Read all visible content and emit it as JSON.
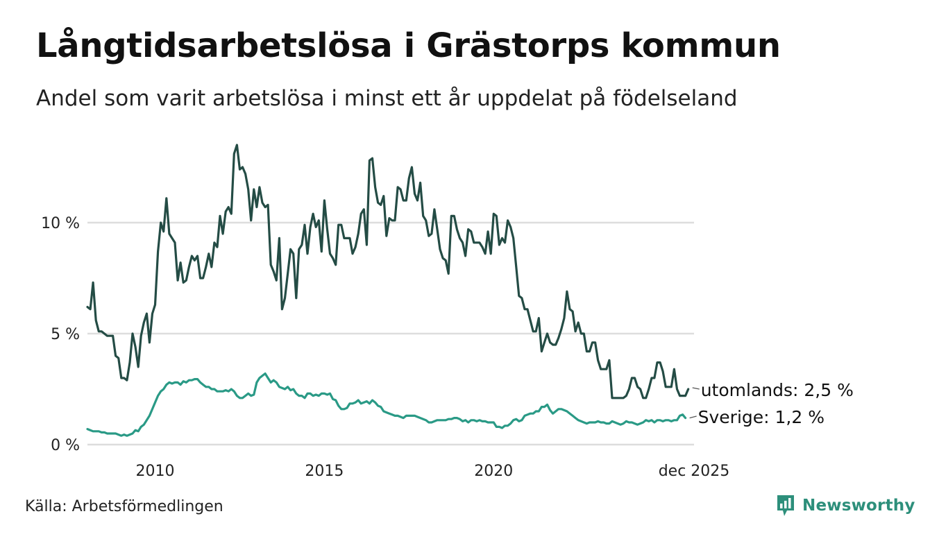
{
  "header": {
    "title": "Långtidsarbetslösa i Grästorps kommun",
    "subtitle": "Andel som varit arbetslösa i minst ett år uppdelat på födelseland"
  },
  "footer": {
    "source": "Källa: Arbetsförmedlingen",
    "brand": "Newsworthy"
  },
  "colors": {
    "utomlands": "#244c45",
    "sverige": "#2a9a86",
    "grid": "#dddddd",
    "brand": "#2d8f7b"
  },
  "chart_data": {
    "type": "line",
    "title": "Långtidsarbetslösa i Grästorps kommun",
    "subtitle": "Andel som varit arbetslösa i minst ett år uppdelat på födelseland",
    "xlabel": "",
    "ylabel": "",
    "x_start": "2008-01",
    "frequency": "monthly",
    "xlim": [
      2008.0,
      2025.92
    ],
    "ylim": [
      0,
      13.5
    ],
    "y_ticks": [
      0,
      5,
      10
    ],
    "y_tick_labels": [
      "0 %",
      "5 %",
      "10 %"
    ],
    "x_ticks": [
      2010,
      2015,
      2020,
      2025.92
    ],
    "x_tick_labels": [
      "2010",
      "2015",
      "2020",
      "dec 2025"
    ],
    "grid": true,
    "series": [
      {
        "name": "utomlands",
        "end_label": "utomlands: 2,5 %",
        "values": [
          6.2,
          6.1,
          7.3,
          5.6,
          5.1,
          5.1,
          5.0,
          4.9,
          4.9,
          4.9,
          4.0,
          3.9,
          3.0,
          3.0,
          2.9,
          3.7,
          5.0,
          4.4,
          3.5,
          4.9,
          5.5,
          5.9,
          4.6,
          5.9,
          6.3,
          8.7,
          10.0,
          9.6,
          11.1,
          9.5,
          9.3,
          9.1,
          7.4,
          8.2,
          7.3,
          7.4,
          8.0,
          8.5,
          8.3,
          8.5,
          7.5,
          7.5,
          8.0,
          8.6,
          8.0,
          9.1,
          8.9,
          10.3,
          9.5,
          10.5,
          10.7,
          10.4,
          13.1,
          13.5,
          12.4,
          12.5,
          12.2,
          11.5,
          10.1,
          11.5,
          10.7,
          11.6,
          10.9,
          10.7,
          10.8,
          8.1,
          7.8,
          7.4,
          9.3,
          6.1,
          6.6,
          7.7,
          8.8,
          8.6,
          6.6,
          8.8,
          9.0,
          9.9,
          8.6,
          9.8,
          10.4,
          9.8,
          10.1,
          8.7,
          11.0,
          9.7,
          8.6,
          8.4,
          8.1,
          9.9,
          9.9,
          9.3,
          9.3,
          9.3,
          8.6,
          8.9,
          9.5,
          10.4,
          10.6,
          9.0,
          12.8,
          12.9,
          11.6,
          10.9,
          10.8,
          11.2,
          9.4,
          10.2,
          10.1,
          10.1,
          11.6,
          11.5,
          11.0,
          11.0,
          12.0,
          12.5,
          11.3,
          11.0,
          11.8,
          10.3,
          10.1,
          9.4,
          9.5,
          10.6,
          9.7,
          8.8,
          8.4,
          8.3,
          7.7,
          10.3,
          10.3,
          9.7,
          9.3,
          9.1,
          8.5,
          9.7,
          9.6,
          9.1,
          9.1,
          9.1,
          8.9,
          8.6,
          9.6,
          8.6,
          10.4,
          10.3,
          9.0,
          9.3,
          9.1,
          10.1,
          9.8,
          9.3,
          8.0,
          6.7,
          6.6,
          6.1,
          6.1,
          5.6,
          5.1,
          5.1,
          5.7,
          4.2,
          4.6,
          5.0,
          4.6,
          4.5,
          4.5,
          4.8,
          5.2,
          5.7,
          6.9,
          6.1,
          6.0,
          5.1,
          5.5,
          5.0,
          5.0,
          4.2,
          4.2,
          4.6,
          4.6,
          3.8,
          3.4,
          3.4,
          3.4,
          3.8,
          2.1,
          2.1,
          2.1,
          2.1,
          2.1,
          2.2,
          2.5,
          3.0,
          3.0,
          2.6,
          2.5,
          2.1,
          2.1,
          2.5,
          3.0,
          3.0,
          3.7,
          3.7,
          3.3,
          2.6,
          2.6,
          2.6,
          3.4,
          2.5,
          2.2,
          2.2,
          2.2,
          2.5
        ]
      },
      {
        "name": "Sverige",
        "end_label": "Sverige: 1,2 %",
        "values": [
          0.7,
          0.65,
          0.6,
          0.6,
          0.6,
          0.55,
          0.55,
          0.5,
          0.5,
          0.5,
          0.5,
          0.45,
          0.4,
          0.45,
          0.4,
          0.45,
          0.5,
          0.65,
          0.6,
          0.8,
          0.9,
          1.1,
          1.3,
          1.6,
          1.9,
          2.2,
          2.4,
          2.5,
          2.7,
          2.8,
          2.75,
          2.8,
          2.8,
          2.7,
          2.85,
          2.8,
          2.9,
          2.9,
          2.95,
          2.95,
          2.8,
          2.7,
          2.6,
          2.6,
          2.5,
          2.5,
          2.4,
          2.4,
          2.4,
          2.45,
          2.4,
          2.5,
          2.4,
          2.2,
          2.1,
          2.1,
          2.2,
          2.3,
          2.2,
          2.25,
          2.8,
          3.0,
          3.1,
          3.2,
          3.0,
          2.8,
          2.9,
          2.8,
          2.6,
          2.55,
          2.5,
          2.6,
          2.45,
          2.5,
          2.3,
          2.2,
          2.2,
          2.1,
          2.3,
          2.3,
          2.2,
          2.25,
          2.2,
          2.3,
          2.3,
          2.25,
          2.3,
          2.05,
          2.0,
          1.75,
          1.6,
          1.6,
          1.65,
          1.85,
          1.85,
          1.9,
          2.0,
          1.85,
          1.9,
          1.95,
          1.85,
          2.0,
          1.9,
          1.75,
          1.7,
          1.5,
          1.45,
          1.4,
          1.35,
          1.3,
          1.3,
          1.25,
          1.2,
          1.3,
          1.3,
          1.3,
          1.3,
          1.25,
          1.2,
          1.15,
          1.1,
          1.0,
          1.0,
          1.05,
          1.1,
          1.1,
          1.1,
          1.1,
          1.15,
          1.15,
          1.2,
          1.2,
          1.15,
          1.05,
          1.1,
          1.0,
          1.1,
          1.1,
          1.05,
          1.1,
          1.05,
          1.05,
          1.0,
          1.0,
          1.0,
          0.8,
          0.8,
          0.75,
          0.85,
          0.85,
          0.95,
          1.1,
          1.15,
          1.05,
          1.1,
          1.3,
          1.35,
          1.4,
          1.4,
          1.5,
          1.5,
          1.7,
          1.7,
          1.8,
          1.55,
          1.4,
          1.5,
          1.6,
          1.6,
          1.55,
          1.5,
          1.4,
          1.3,
          1.2,
          1.1,
          1.05,
          1.0,
          0.95,
          1.0,
          1.0,
          1.0,
          1.05,
          1.0,
          1.0,
          0.95,
          0.95,
          1.05,
          1.0,
          0.95,
          0.9,
          0.95,
          1.05,
          1.0,
          1.0,
          0.95,
          0.9,
          0.95,
          1.0,
          1.1,
          1.05,
          1.1,
          1.0,
          1.1,
          1.1,
          1.05,
          1.1,
          1.1,
          1.05,
          1.1,
          1.1,
          1.3,
          1.35,
          1.2
        ]
      }
    ]
  }
}
